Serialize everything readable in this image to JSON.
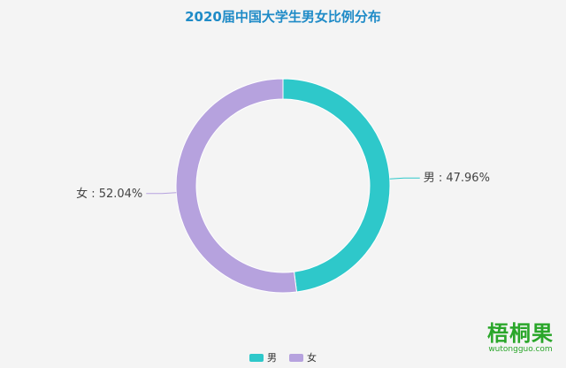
{
  "chart_data": {
    "type": "pie",
    "title": "2020届中国大学生男女比例分布",
    "slices": [
      {
        "name": "男",
        "value": 47.96,
        "label": "男 : 47.96%",
        "color": "#2ec8ca"
      },
      {
        "name": "女",
        "value": 52.04,
        "label": "女 : 52.04%",
        "color": "#b6a2de"
      }
    ],
    "donut": true,
    "legend_position": "bottom-center"
  },
  "watermark": {
    "main": "梧桐果",
    "sub": "wutongguo.com"
  }
}
